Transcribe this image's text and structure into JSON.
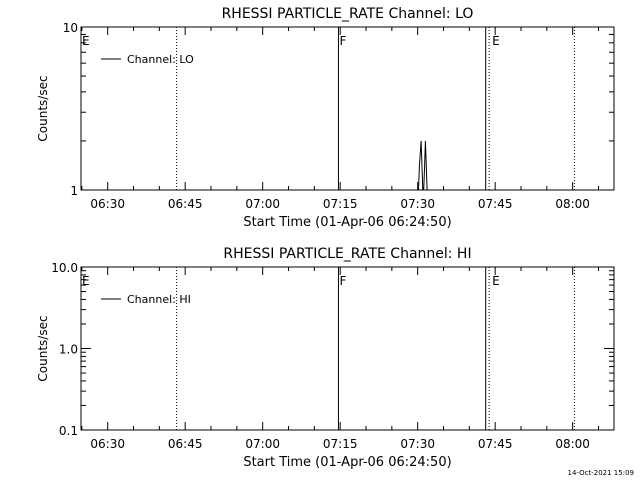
{
  "footer": {
    "timestamp": "14-Oct-2021 15:09"
  },
  "chart_data": [
    {
      "type": "line",
      "title": "RHESSI PARTICLE_RATE Channel: LO",
      "xlabel": "Start Time (01-Apr-06 06:24:50)",
      "ylabel": "Counts/sec",
      "xlim": [
        "06:24:50",
        "08:08:00"
      ],
      "x_ticks": [
        "06:30",
        "06:45",
        "07:00",
        "07:15",
        "07:30",
        "07:45",
        "08:00"
      ],
      "y_scale": "log",
      "ylim": [
        1,
        10
      ],
      "y_tick_values": [
        1,
        10
      ],
      "y_tick_labels": [
        "1",
        "10"
      ],
      "legend": {
        "position": "top-left",
        "entries": [
          "Channel: LO"
        ]
      },
      "grid": false,
      "series": [
        {
          "name": "Channel: LO",
          "x": [
            "07:30:10",
            "07:30:20",
            "07:30:40",
            "07:30:50",
            "07:31:00",
            "07:31:10",
            "07:31:20",
            "07:31:30",
            "07:31:40",
            "07:31:50"
          ],
          "y": [
            1,
            1.4,
            2,
            1.4,
            1,
            1,
            1.4,
            2,
            1.4,
            1
          ]
        }
      ],
      "vertical_markers": [
        {
          "time": "06:43:20",
          "style": "dotted",
          "label": ""
        },
        {
          "time": "07:14:40",
          "style": "solid",
          "label": "F"
        },
        {
          "time": "07:43:10",
          "style": "solid",
          "label": ""
        },
        {
          "time": "07:43:50",
          "style": "dotted",
          "label": "E"
        },
        {
          "time": "08:00:20",
          "style": "dotted",
          "label": ""
        }
      ],
      "edge_label": "E"
    },
    {
      "type": "line",
      "title": "RHESSI PARTICLE_RATE Channel: HI",
      "xlabel": "Start Time (01-Apr-06 06:24:50)",
      "ylabel": "Counts/sec",
      "xlim": [
        "06:24:50",
        "08:08:00"
      ],
      "x_ticks": [
        "06:30",
        "06:45",
        "07:00",
        "07:15",
        "07:30",
        "07:45",
        "08:00"
      ],
      "y_scale": "log",
      "ylim": [
        0.1,
        10
      ],
      "y_tick_values": [
        0.1,
        1,
        10
      ],
      "y_tick_labels": [
        "0.1",
        "1.0",
        "10.0"
      ],
      "legend": {
        "position": "top-left",
        "entries": [
          "Channel: HI"
        ]
      },
      "grid": false,
      "series": [
        {
          "name": "Channel: HI",
          "x": [],
          "y": []
        }
      ],
      "vertical_markers": [
        {
          "time": "06:43:20",
          "style": "dotted",
          "label": ""
        },
        {
          "time": "07:14:40",
          "style": "solid",
          "label": "F"
        },
        {
          "time": "07:43:10",
          "style": "solid",
          "label": ""
        },
        {
          "time": "07:43:50",
          "style": "dotted",
          "label": "E"
        },
        {
          "time": "08:00:20",
          "style": "dotted",
          "label": ""
        }
      ],
      "edge_label": "E"
    }
  ]
}
